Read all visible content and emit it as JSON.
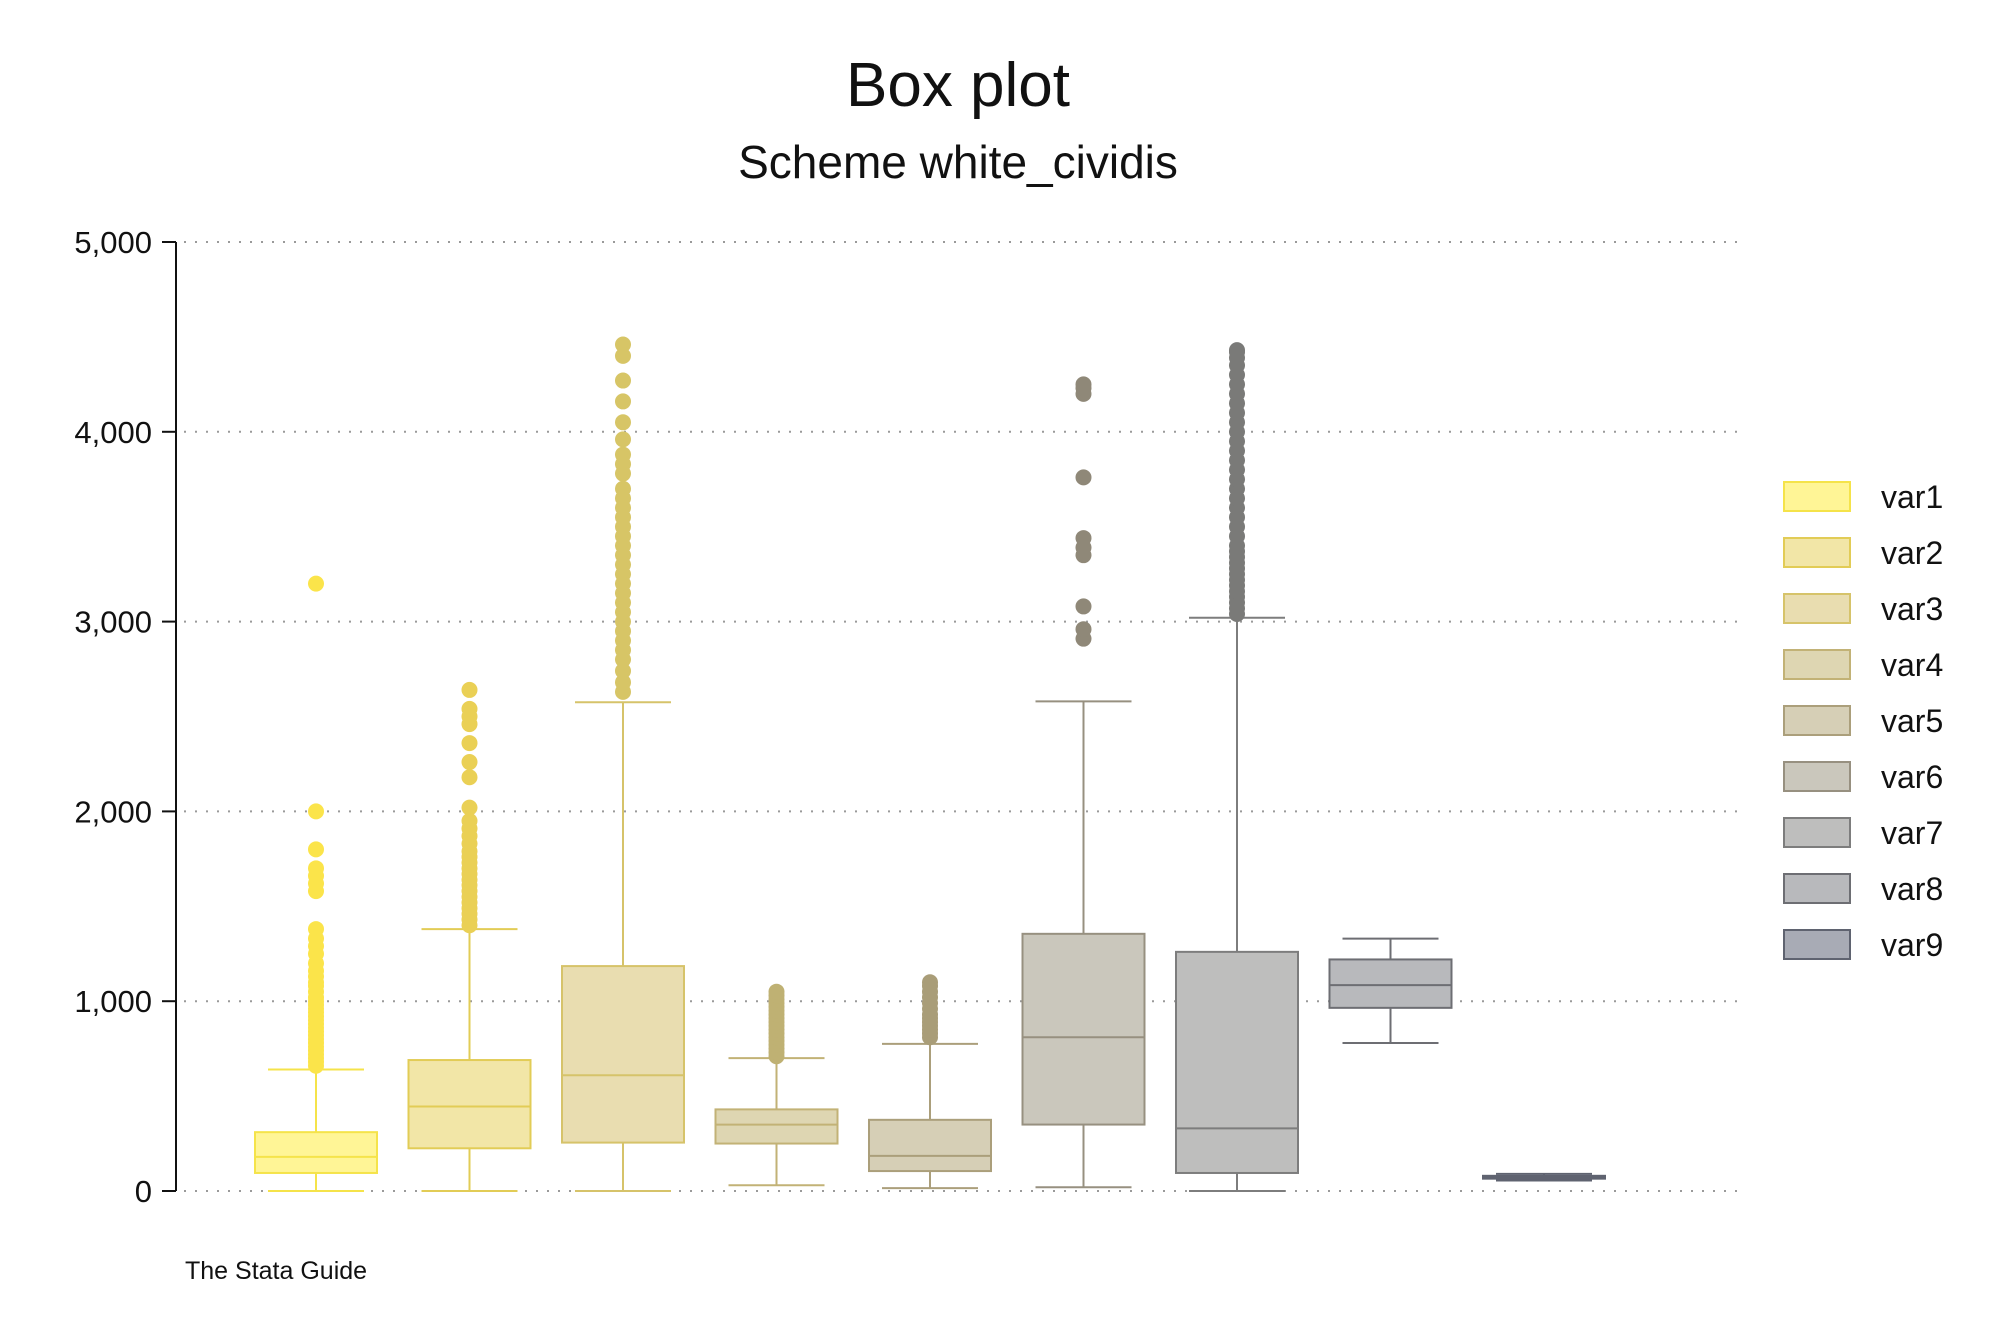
{
  "chart_data": {
    "type": "box",
    "title": "Box plot",
    "subtitle": "Scheme white_cividis",
    "note": "The Stata Guide",
    "xlabel": "",
    "ylabel": "",
    "ylim": [
      0,
      5000
    ],
    "yticks": [
      0,
      1000,
      2000,
      3000,
      4000,
      5000
    ],
    "ytick_labels": [
      "0",
      "1,000",
      "2,000",
      "3,000",
      "4,000",
      "5,000"
    ],
    "grid": true,
    "legend_position": "right",
    "series": [
      {
        "name": "var1",
        "fill": "#fff596",
        "stroke": "#f5e34a",
        "outlier_color": "#fbe44a",
        "whisker_low": 0,
        "q1": 95,
        "median": 180,
        "q3": 310,
        "whisker_high": 640,
        "outliers": [
          660,
          680,
          700,
          720,
          740,
          760,
          780,
          800,
          820,
          840,
          860,
          880,
          900,
          920,
          940,
          960,
          980,
          1000,
          1020,
          1050,
          1080,
          1100,
          1130,
          1160,
          1200,
          1250,
          1290,
          1330,
          1380,
          1580,
          1620,
          1660,
          1700,
          1800,
          2000,
          3200
        ]
      },
      {
        "name": "var2",
        "fill": "#f2e6a7",
        "stroke": "#e2cc56",
        "outlier_color": "#ead055",
        "whisker_low": 0,
        "q1": 225,
        "median": 445,
        "q3": 690,
        "whisker_high": 1380,
        "outliers": [
          1400,
          1430,
          1460,
          1490,
          1520,
          1550,
          1580,
          1610,
          1640,
          1670,
          1700,
          1730,
          1760,
          1790,
          1830,
          1870,
          1910,
          1950,
          2020,
          2180,
          2260,
          2360,
          2460,
          2500,
          2540,
          2640
        ]
      },
      {
        "name": "var3",
        "fill": "#e9ddb0",
        "stroke": "#d6c36a",
        "outlier_color": "#d7c566",
        "whisker_low": 0,
        "q1": 255,
        "median": 610,
        "q3": 1185,
        "whisker_high": 2575,
        "outliers": [
          2630,
          2680,
          2740,
          2800,
          2850,
          2900,
          2950,
          3000,
          3050,
          3100,
          3150,
          3200,
          3250,
          3300,
          3350,
          3400,
          3450,
          3500,
          3550,
          3600,
          3650,
          3700,
          3780,
          3830,
          3880,
          3960,
          4050,
          4160,
          4270,
          4400,
          4460
        ]
      },
      {
        "name": "var4",
        "fill": "#ded6b2",
        "stroke": "#c2b276",
        "outlier_color": "#bfb173",
        "whisker_low": 30,
        "q1": 250,
        "median": 350,
        "q3": 430,
        "whisker_high": 700,
        "outliers": [
          710,
          730,
          750,
          770,
          790,
          810,
          830,
          850,
          870,
          890,
          910,
          930,
          950,
          970,
          990,
          1010,
          1030,
          1050
        ]
      },
      {
        "name": "var5",
        "fill": "#d6cfb6",
        "stroke": "#ab9f7b",
        "outlier_color": "#a99d78",
        "whisker_low": 15,
        "q1": 105,
        "median": 185,
        "q3": 375,
        "whisker_high": 775,
        "outliers": [
          810,
          830,
          850,
          870,
          890,
          910,
          930,
          960,
          990,
          1020,
          1050,
          1080,
          1100
        ]
      },
      {
        "name": "var6",
        "fill": "#cac7bc",
        "stroke": "#979080",
        "outlier_color": "#8f8878",
        "whisker_low": 20,
        "q1": 350,
        "median": 810,
        "q3": 1355,
        "whisker_high": 2580,
        "outliers": [
          2910,
          2960,
          3080,
          3350,
          3390,
          3440,
          3760,
          4200,
          4230,
          4250
        ]
      },
      {
        "name": "var7",
        "fill": "#bebebd",
        "stroke": "#7d7d7d",
        "outlier_color": "#7a7a78",
        "whisker_low": 0,
        "q1": 95,
        "median": 330,
        "q3": 1260,
        "whisker_high": 3020,
        "outliers": [
          3040,
          3070,
          3100,
          3130,
          3160,
          3190,
          3220,
          3250,
          3280,
          3310,
          3340,
          3370,
          3400,
          3450,
          3500,
          3550,
          3600,
          3650,
          3700,
          3750,
          3800,
          3850,
          3900,
          3950,
          4000,
          4050,
          4100,
          4150,
          4200,
          4250,
          4300,
          4350,
          4390,
          4420,
          4430
        ]
      },
      {
        "name": "var8",
        "fill": "#b8b9bc",
        "stroke": "#6d6e73",
        "outlier_color": "#6d6e73",
        "whisker_low": 780,
        "q1": 965,
        "median": 1085,
        "q3": 1220,
        "whisker_high": 1330,
        "outliers": []
      },
      {
        "name": "var9",
        "fill": "#a8abb5",
        "stroke": "#5f6370",
        "outlier_color": "#5f6370",
        "whisker_low": 55,
        "q1": 65,
        "median": 72,
        "q3": 80,
        "whisker_high": 90,
        "outliers": []
      }
    ]
  }
}
